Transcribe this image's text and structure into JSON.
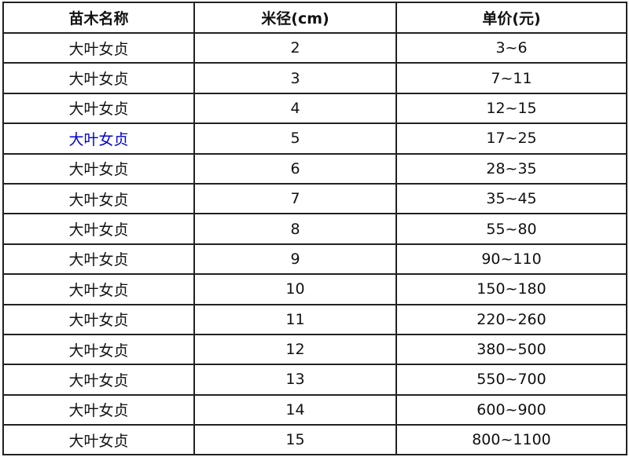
{
  "table": {
    "headers": [
      "苗木名称",
      "米径(cm)",
      "单价(元)"
    ],
    "rows": [
      {
        "name": "大叶女贞",
        "diameter": "2",
        "price": "3~6"
      },
      {
        "name": "大叶女贞",
        "diameter": "3",
        "price": "7~11"
      },
      {
        "name": "大叶女贞",
        "diameter": "4",
        "price": "12~15"
      },
      {
        "name": "大叶女贞",
        "diameter": "5",
        "price": "17~25",
        "name_color": "#0000d0"
      },
      {
        "name": "大叶女贞",
        "diameter": "6",
        "price": "28~35"
      },
      {
        "name": "大叶女贞",
        "diameter": "7",
        "price": "35~45"
      },
      {
        "name": "大叶女贞",
        "diameter": "8",
        "price": "55~80"
      },
      {
        "name": "大叶女贞",
        "diameter": "9",
        "price": "90~110"
      },
      {
        "name": "大叶女贞",
        "diameter": "10",
        "price": "150~180"
      },
      {
        "name": "大叶女贞",
        "diameter": "11",
        "price": "220~260"
      },
      {
        "name": "大叶女贞",
        "diameter": "12",
        "price": "380~500"
      },
      {
        "name": "大叶女贞",
        "diameter": "13",
        "price": "550~700"
      },
      {
        "name": "大叶女贞",
        "diameter": "14",
        "price": "600~900"
      },
      {
        "name": "大叶女贞",
        "diameter": "15",
        "price": "800~1100"
      }
    ]
  }
}
